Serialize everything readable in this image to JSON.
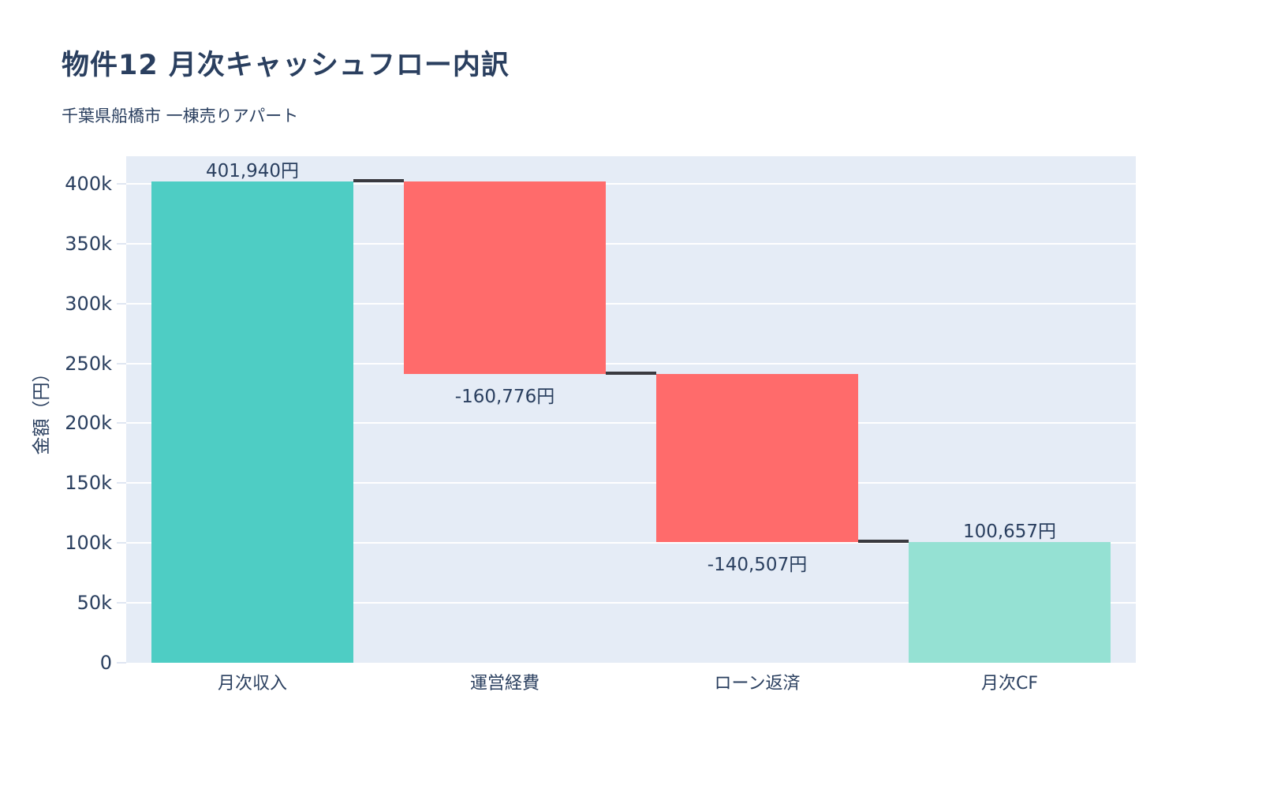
{
  "header": {
    "title": "物件12 月次キャッシュフロー内訳",
    "subtitle": "千葉県船橋市 一棟売りアパート"
  },
  "chart_data": {
    "type": "waterfall",
    "title": "物件12 月次キャッシュフロー内訳",
    "subtitle": "千葉県船橋市 一棟売りアパート",
    "xlabel": "",
    "ylabel": "金額（円）",
    "categories": [
      "月次収入",
      "運営経費",
      "ローン返済",
      "月次CF"
    ],
    "values": [
      401940,
      -160776,
      -140507,
      100657
    ],
    "measures": [
      "relative",
      "relative",
      "relative",
      "total"
    ],
    "running_totals": [
      401940,
      241164,
      100657,
      100657
    ],
    "bar_labels": [
      "401,940円",
      "-160,776円",
      "-140,507円",
      "100,657円"
    ],
    "yticks": [
      {
        "value": 0,
        "label": "0"
      },
      {
        "value": 50000,
        "label": "50k"
      },
      {
        "value": 100000,
        "label": "100k"
      },
      {
        "value": 150000,
        "label": "150k"
      },
      {
        "value": 200000,
        "label": "200k"
      },
      {
        "value": 250000,
        "label": "250k"
      },
      {
        "value": 300000,
        "label": "300k"
      },
      {
        "value": 350000,
        "label": "350k"
      },
      {
        "value": 400000,
        "label": "400k"
      }
    ],
    "ylim": [
      0,
      423000
    ],
    "grid": true,
    "legend": "none",
    "colors": {
      "increase": "#4ECDC4",
      "decrease": "#FF6B6B",
      "total": "#95E1D3",
      "connector": "#3a3a40",
      "plot_bg": "#E5ECF6",
      "grid": "#ffffff",
      "tick_mark": "#dfe6f2",
      "text": "#2a3f5f"
    }
  }
}
